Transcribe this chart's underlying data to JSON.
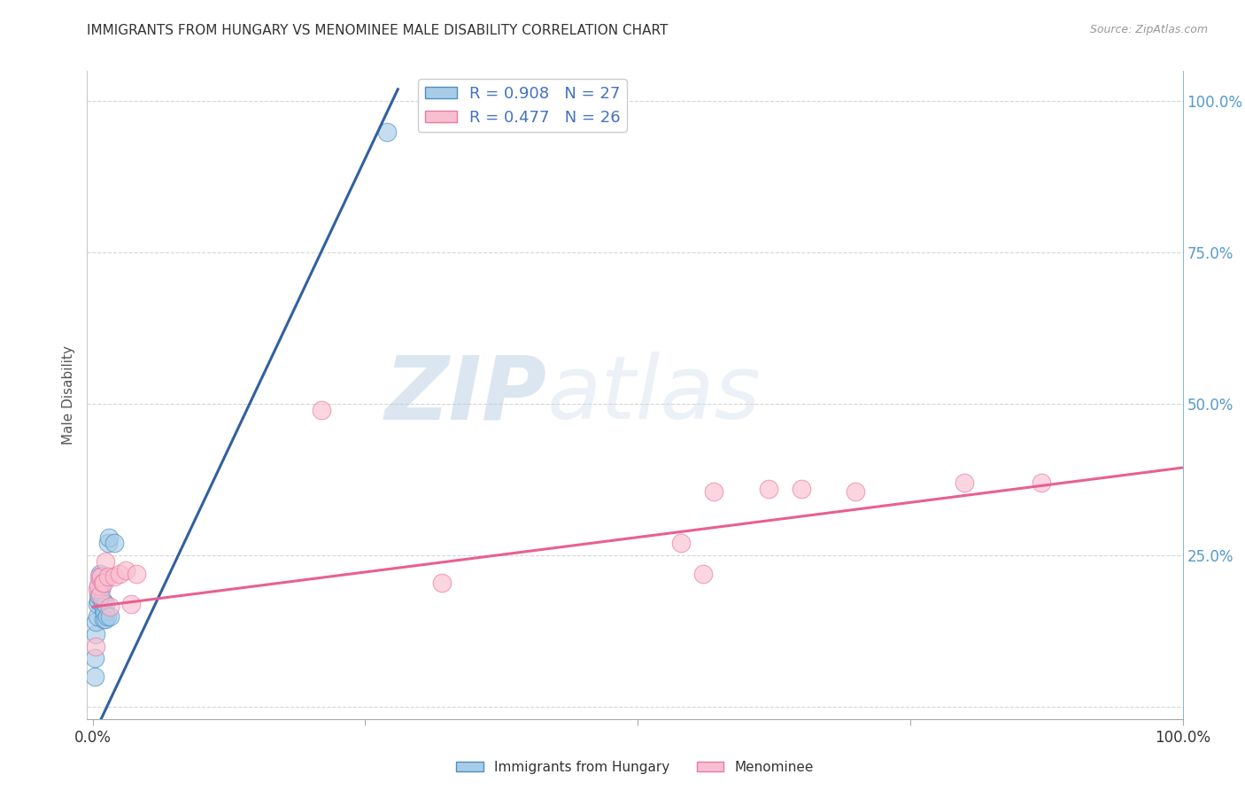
{
  "title": "IMMIGRANTS FROM HUNGARY VS MENOMINEE MALE DISABILITY CORRELATION CHART",
  "source": "Source: ZipAtlas.com",
  "ylabel": "Male Disability",
  "watermark_zip": "ZIP",
  "watermark_atlas": "atlas",
  "legend_r1": "R = 0.908",
  "legend_n1": "N = 27",
  "legend_r2": "R = 0.477",
  "legend_n2": "N = 26",
  "blue_fill": "#a8cce8",
  "pink_fill": "#f9bfd0",
  "blue_edge": "#4a90c4",
  "pink_edge": "#e87aa0",
  "blue_line_color": "#3060a0",
  "pink_line_color": "#e86090",
  "legend_text_color": "#4472c4",
  "background_color": "#ffffff",
  "grid_color": "#cccccc",
  "right_axis_color": "#5599cc",
  "blue_points_x": [
    0.002,
    0.002,
    0.003,
    0.003,
    0.004,
    0.004,
    0.005,
    0.005,
    0.006,
    0.006,
    0.007,
    0.007,
    0.008,
    0.008,
    0.009,
    0.009,
    0.01,
    0.01,
    0.011,
    0.012,
    0.012,
    0.013,
    0.014,
    0.015,
    0.016,
    0.02,
    0.27
  ],
  "blue_points_y": [
    0.05,
    0.08,
    0.12,
    0.14,
    0.15,
    0.17,
    0.175,
    0.185,
    0.19,
    0.2,
    0.21,
    0.22,
    0.195,
    0.215,
    0.17,
    0.175,
    0.145,
    0.16,
    0.155,
    0.145,
    0.17,
    0.15,
    0.27,
    0.28,
    0.15,
    0.27,
    0.95
  ],
  "pink_points_x": [
    0.003,
    0.004,
    0.005,
    0.006,
    0.007,
    0.008,
    0.009,
    0.01,
    0.012,
    0.014,
    0.016,
    0.02,
    0.025,
    0.03,
    0.035,
    0.04,
    0.21,
    0.54,
    0.57,
    0.62,
    0.65,
    0.7,
    0.8,
    0.87,
    0.56,
    0.32
  ],
  "pink_points_y": [
    0.1,
    0.195,
    0.2,
    0.215,
    0.185,
    0.215,
    0.205,
    0.205,
    0.24,
    0.215,
    0.165,
    0.215,
    0.22,
    0.225,
    0.17,
    0.22,
    0.49,
    0.27,
    0.355,
    0.36,
    0.36,
    0.355,
    0.37,
    0.37,
    0.22,
    0.205
  ],
  "blue_line_x": [
    0.0,
    0.28
  ],
  "blue_line_y": [
    -0.05,
    1.02
  ],
  "pink_line_x": [
    0.0,
    1.0
  ],
  "pink_line_y": [
    0.165,
    0.395
  ],
  "xlim": [
    -0.005,
    1.0
  ],
  "ylim": [
    -0.02,
    1.05
  ],
  "xticks": [
    0.0,
    0.25,
    0.5,
    0.75,
    1.0
  ],
  "xticklabels": [
    "0.0%",
    "",
    "",
    "",
    "100.0%"
  ],
  "yticks": [
    0.0,
    0.25,
    0.5,
    0.75,
    1.0
  ],
  "right_yticks": [
    0.25,
    0.5,
    0.75,
    1.0
  ],
  "right_yticklabels": [
    "25.0%",
    "50.0%",
    "75.0%",
    "100.0%"
  ]
}
